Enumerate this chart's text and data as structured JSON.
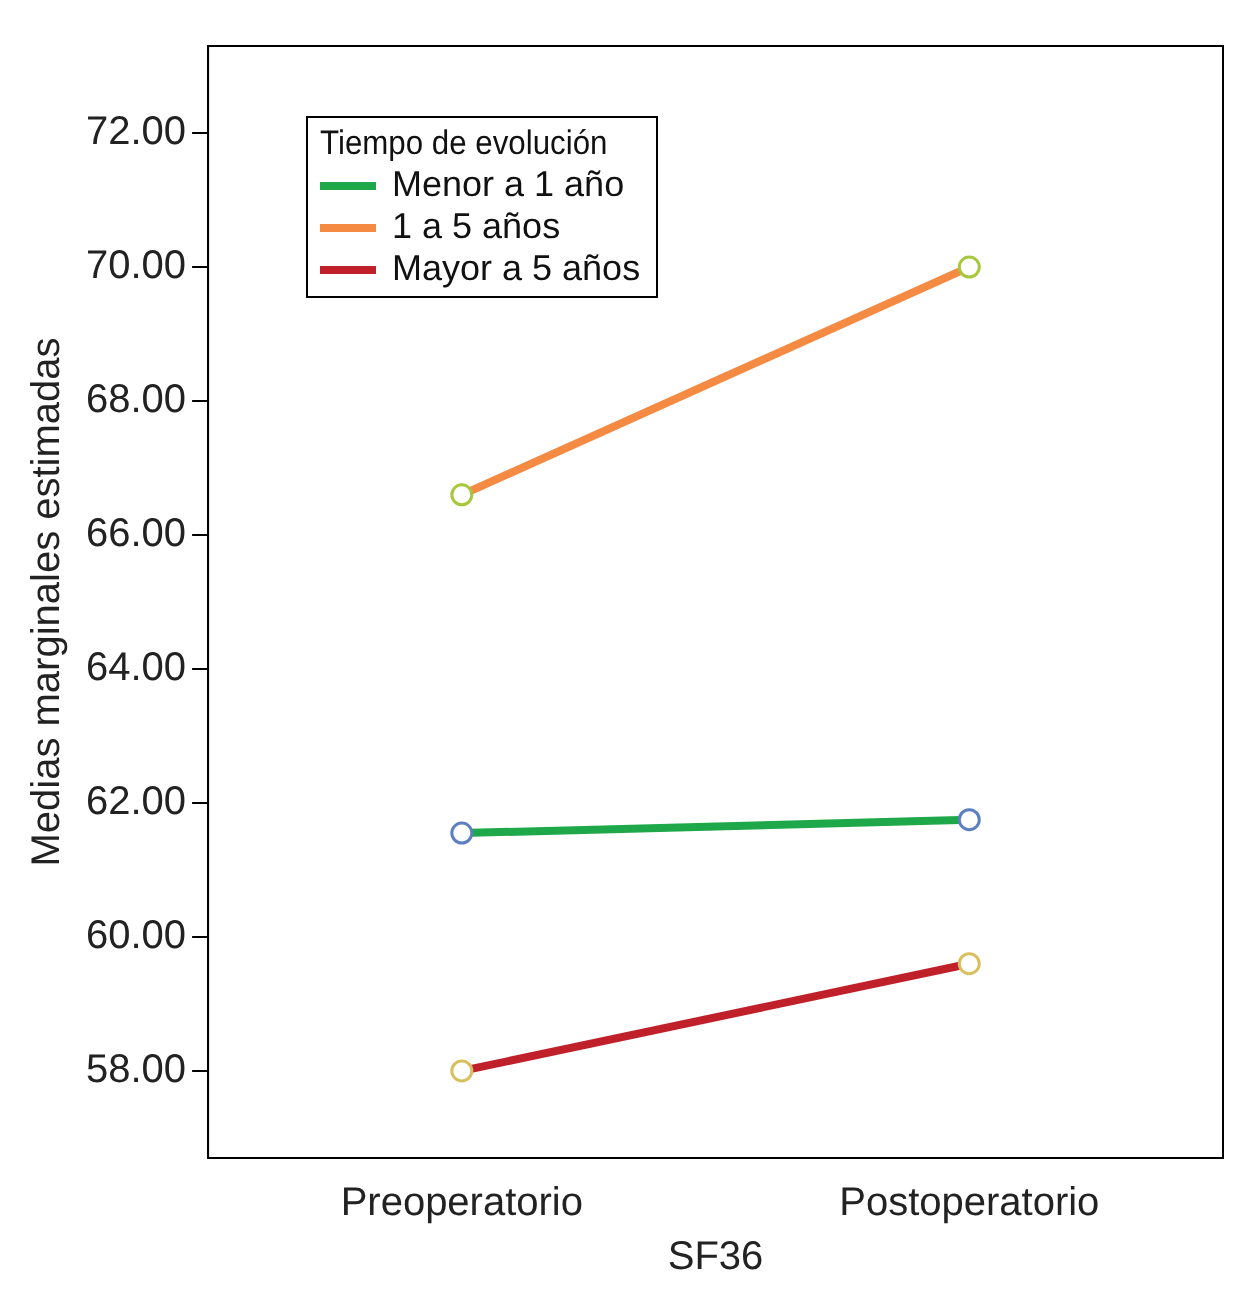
{
  "chart_data": {
    "type": "line",
    "xlabel": "SF36",
    "ylabel": "Medias marginales estimadas",
    "legend_title": "Tiempo de evolución",
    "categories": [
      "Preoperatorio",
      "Postoperatorio"
    ],
    "series": [
      {
        "name": "Menor a 1 año",
        "color": "#1ea84a",
        "colors": [
          "#5b7fc0",
          "#5b7fc0"
        ],
        "values": [
          61.55,
          61.75
        ]
      },
      {
        "name": "1 a 5 años",
        "color": "#f58a42",
        "colors": [
          "#a8c83c",
          "#a8c83c"
        ],
        "values": [
          66.6,
          70.0
        ]
      },
      {
        "name": "Mayor a 5 años",
        "color": "#c0202a",
        "colors": [
          "#d8c060",
          "#d8c060"
        ],
        "values": [
          58.0,
          59.6
        ]
      }
    ],
    "ylim": [
      56.7,
      73.3
    ],
    "yticks": [
      {
        "value": 58,
        "label": "58.00"
      },
      {
        "value": 60,
        "label": "60.00"
      },
      {
        "value": 62,
        "label": "62.00"
      },
      {
        "value": 64,
        "label": "64.00"
      },
      {
        "value": 66,
        "label": "66.00"
      },
      {
        "value": 68,
        "label": "68.00"
      },
      {
        "value": 70,
        "label": "70.00"
      },
      {
        "value": 72,
        "label": "72.00"
      }
    ],
    "grid": false,
    "legend": "top left",
    "marker": "circle",
    "line_style": "solid"
  }
}
